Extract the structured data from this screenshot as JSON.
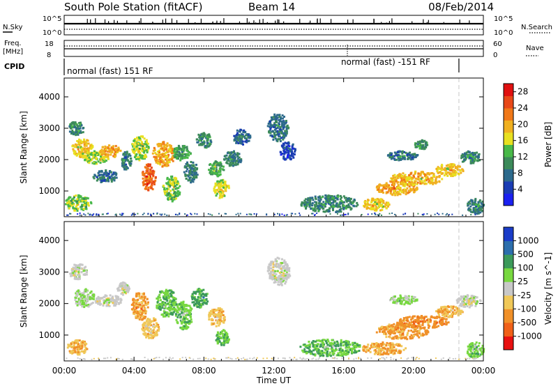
{
  "header": {
    "station": "South Pole Station (fitACF)",
    "beam": "Beam 14",
    "date": "08/Feb/2014"
  },
  "top_panels": {
    "nsky_label": "N.Sky",
    "nsearch_label": "N.Search",
    "noise_ticks": [
      "10^5",
      "10^0"
    ],
    "freq_label_1": "Freq.",
    "freq_label_2": "[MHz]",
    "freq_ticks": [
      "18",
      "8"
    ],
    "nave_label": "Nave",
    "nave_ticks": [
      "60",
      "0"
    ],
    "cpid_label": "CPID",
    "cpid_left": "normal (fast) 151 RF",
    "cpid_right": "normal (fast) -151 RF",
    "cpid_switch_hour": 22.6
  },
  "chart_data": [
    {
      "type": "heatmap",
      "title": "",
      "xlabel": "Time UT",
      "ylabel": "Slant Range [km]",
      "xlim": [
        0,
        24
      ],
      "ylim": [
        180,
        4600
      ],
      "x_ticks": [
        "00:00",
        "04:00",
        "08:00",
        "12:00",
        "16:00",
        "20:00",
        "00:00"
      ],
      "y_ticks": [
        1000,
        2000,
        3000,
        4000
      ],
      "colorbar": {
        "label": "Power [dB]",
        "ticks": [
          4,
          8,
          12,
          16,
          20,
          24,
          28
        ],
        "colors": [
          "#1a20f0",
          "#1a3cb4",
          "#2d6a8c",
          "#3c8a5a",
          "#48b848",
          "#e8e020",
          "#f0b020",
          "#f07818",
          "#e84818",
          "#e01010"
        ],
        "range": [
          0,
          30
        ]
      },
      "blobs": [
        {
          "t0": 0.2,
          "t1": 1.1,
          "r0": 2800,
          "r1": 3250,
          "v": 10
        },
        {
          "t0": 0.4,
          "t1": 1.6,
          "r0": 2100,
          "r1": 2700,
          "v": 18
        },
        {
          "t0": 1.0,
          "t1": 2.5,
          "r0": 1900,
          "r1": 2300,
          "v": 15
        },
        {
          "t0": 2.0,
          "t1": 3.2,
          "r0": 2100,
          "r1": 2500,
          "v": 20
        },
        {
          "t0": 3.2,
          "t1": 3.8,
          "r0": 1700,
          "r1": 2300,
          "v": 9
        },
        {
          "t0": 0.0,
          "t1": 1.5,
          "r0": 400,
          "r1": 900,
          "v": 14
        },
        {
          "t0": 1.6,
          "t1": 3.0,
          "r0": 1300,
          "r1": 1700,
          "v": 8
        },
        {
          "t0": 3.8,
          "t1": 4.8,
          "r0": 2000,
          "r1": 2800,
          "v": 15
        },
        {
          "t0": 4.4,
          "t1": 5.2,
          "r0": 1000,
          "r1": 1900,
          "v": 24
        },
        {
          "t0": 5.0,
          "t1": 6.3,
          "r0": 1800,
          "r1": 2600,
          "v": 20
        },
        {
          "t0": 5.6,
          "t1": 6.6,
          "r0": 700,
          "r1": 1500,
          "v": 14
        },
        {
          "t0": 6.2,
          "t1": 7.2,
          "r0": 2000,
          "r1": 2500,
          "v": 12
        },
        {
          "t0": 6.8,
          "t1": 7.6,
          "r0": 1300,
          "r1": 2000,
          "v": 9
        },
        {
          "t0": 7.5,
          "t1": 8.4,
          "r0": 2400,
          "r1": 2900,
          "v": 10
        },
        {
          "t0": 8.2,
          "t1": 9.1,
          "r0": 1500,
          "r1": 2000,
          "v": 12
        },
        {
          "t0": 8.5,
          "t1": 9.4,
          "r0": 800,
          "r1": 1400,
          "v": 16
        },
        {
          "t0": 9.1,
          "t1": 10.1,
          "r0": 1800,
          "r1": 2300,
          "v": 9
        },
        {
          "t0": 9.6,
          "t1": 10.6,
          "r0": 2500,
          "r1": 3000,
          "v": 7
        },
        {
          "t0": 11.6,
          "t1": 12.8,
          "r0": 2600,
          "r1": 3500,
          "v": 8
        },
        {
          "t0": 12.3,
          "t1": 13.2,
          "r0": 2000,
          "r1": 2600,
          "v": 5
        },
        {
          "t0": 13.5,
          "t1": 16.8,
          "r0": 350,
          "r1": 900,
          "v": 10
        },
        {
          "t0": 17.0,
          "t1": 18.6,
          "r0": 400,
          "r1": 800,
          "v": 18
        },
        {
          "t0": 17.8,
          "t1": 20.2,
          "r0": 900,
          "r1": 1350,
          "v": 20
        },
        {
          "t0": 18.6,
          "t1": 21.6,
          "r0": 1200,
          "r1": 1650,
          "v": 19
        },
        {
          "t0": 18.4,
          "t1": 20.2,
          "r0": 2000,
          "r1": 2300,
          "v": 8
        },
        {
          "t0": 20.0,
          "t1": 20.8,
          "r0": 2350,
          "r1": 2650,
          "v": 11
        },
        {
          "t0": 21.2,
          "t1": 22.8,
          "r0": 1500,
          "r1": 1900,
          "v": 18
        },
        {
          "t0": 22.6,
          "t1": 23.8,
          "r0": 1900,
          "r1": 2300,
          "v": 10
        },
        {
          "t0": 23.0,
          "t1": 24.0,
          "r0": 300,
          "r1": 800,
          "v": 9
        }
      ]
    },
    {
      "type": "heatmap",
      "title": "",
      "xlabel": "Time UT",
      "ylabel": "Slant Range [km]",
      "xlim": [
        0,
        24
      ],
      "ylim": [
        180,
        4600
      ],
      "x_ticks": [
        "00:00",
        "04:00",
        "08:00",
        "12:00",
        "16:00",
        "20:00",
        "00:00"
      ],
      "y_ticks": [
        1000,
        2000,
        3000,
        4000
      ],
      "colorbar": {
        "label": "Velocity [m s^-1]",
        "ticks": [
          "1000",
          "500",
          "100",
          "25",
          "-25",
          "-100",
          "-500",
          "-1000"
        ],
        "colors": [
          "#e81010",
          "#f06018",
          "#f09028",
          "#f0c858",
          "#c8c8c8",
          "#78d840",
          "#3c9a5a",
          "#2c6eac",
          "#1a3cc8"
        ],
        "range": [
          -1000,
          1000
        ]
      },
      "blobs": [
        {
          "t0": 0.2,
          "t1": 1.3,
          "r0": 2800,
          "r1": 3300,
          "v": 0
        },
        {
          "t0": 0.5,
          "t1": 1.7,
          "r0": 1900,
          "r1": 2500,
          "v": 150
        },
        {
          "t0": 1.7,
          "t1": 3.3,
          "r0": 1950,
          "r1": 2300,
          "v": 0
        },
        {
          "t0": 3.0,
          "t1": 3.7,
          "r0": 2300,
          "r1": 2700,
          "v": 0
        },
        {
          "t0": 0.1,
          "t1": 1.3,
          "r0": 400,
          "r1": 900,
          "v": -300
        },
        {
          "t0": 3.8,
          "t1": 4.8,
          "r0": 1500,
          "r1": 2400,
          "v": -400
        },
        {
          "t0": 4.4,
          "t1": 5.4,
          "r0": 900,
          "r1": 1600,
          "v": -250
        },
        {
          "t0": 5.2,
          "t1": 6.4,
          "r0": 1600,
          "r1": 2500,
          "v": 300
        },
        {
          "t0": 6.3,
          "t1": 7.3,
          "r0": 1200,
          "r1": 2100,
          "v": 250
        },
        {
          "t0": 7.2,
          "t1": 8.2,
          "r0": 1900,
          "r1": 2500,
          "v": 400
        },
        {
          "t0": 8.2,
          "t1": 9.2,
          "r0": 1300,
          "r1": 1900,
          "v": -250
        },
        {
          "t0": 8.6,
          "t1": 9.4,
          "r0": 700,
          "r1": 1200,
          "v": 300
        },
        {
          "t0": 11.6,
          "t1": 12.9,
          "r0": 2600,
          "r1": 3500,
          "v": 0
        },
        {
          "t0": 13.4,
          "t1": 17.0,
          "r0": 350,
          "r1": 900,
          "v": 300
        },
        {
          "t0": 17.0,
          "t1": 19.5,
          "r0": 400,
          "r1": 800,
          "v": -350
        },
        {
          "t0": 17.8,
          "t1": 20.8,
          "r0": 900,
          "r1": 1400,
          "v": -400
        },
        {
          "t0": 19.0,
          "t1": 22.0,
          "r0": 1250,
          "r1": 1650,
          "v": -450
        },
        {
          "t0": 18.6,
          "t1": 20.2,
          "r0": 2000,
          "r1": 2300,
          "v": 150
        },
        {
          "t0": 21.2,
          "t1": 22.8,
          "r0": 1600,
          "r1": 1950,
          "v": -300
        },
        {
          "t0": 22.4,
          "t1": 23.8,
          "r0": 1900,
          "r1": 2300,
          "v": 0
        },
        {
          "t0": 23.0,
          "t1": 24.0,
          "r0": 300,
          "r1": 800,
          "v": 250
        }
      ]
    }
  ]
}
